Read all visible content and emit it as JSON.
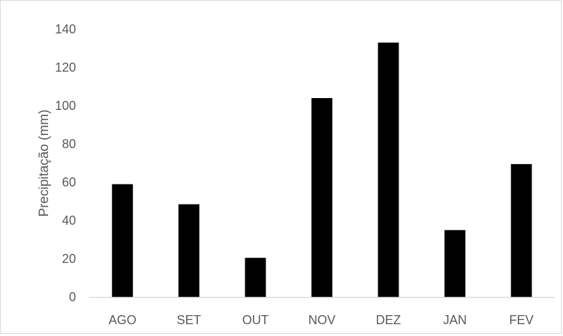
{
  "chart_data": {
    "type": "bar",
    "categories": [
      "AGO",
      "SET",
      "OUT",
      "NOV",
      "DEZ",
      "JAN",
      "FEV"
    ],
    "values": [
      59,
      48.5,
      20.5,
      104,
      133,
      35,
      69.5
    ],
    "xlabel": "",
    "ylabel": "Precipitação (mm)",
    "ylim": [
      0,
      140
    ],
    "yticks": [
      0,
      20,
      40,
      60,
      80,
      100,
      120,
      140
    ],
    "grid": false,
    "legend": "none",
    "bar_color": "#000000",
    "axis_color": "#d9d9d9",
    "text_color": "#595959"
  }
}
